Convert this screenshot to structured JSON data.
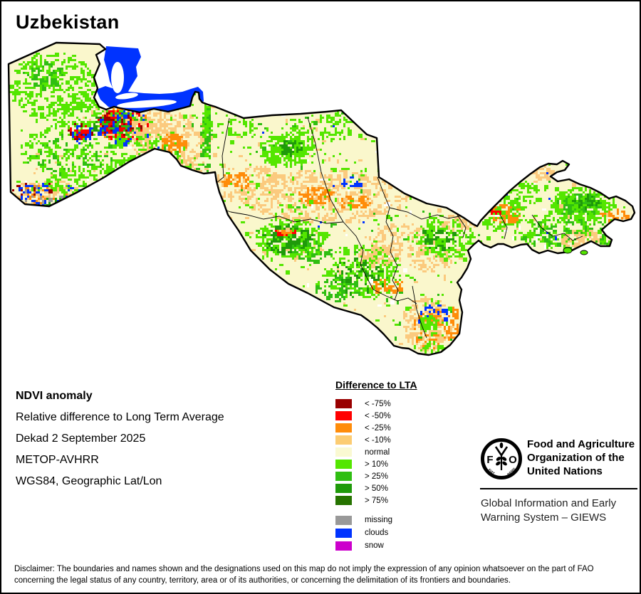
{
  "title": "Uzbekistan",
  "info": {
    "heading": "NDVI anomaly",
    "lines": [
      "Relative difference to Long Term Average",
      "Dekad 2 September 2025",
      "METOP-AVHRR",
      "WGS84, Geographic Lat/Lon"
    ]
  },
  "legend": {
    "title": "Difference to LTA",
    "classes": [
      {
        "label": "< -75%",
        "color": "#990000"
      },
      {
        "label": "< -50%",
        "color": "#FF0000"
      },
      {
        "label": "< -25%",
        "color": "#FF8C0A"
      },
      {
        "label": "< -10%",
        "color": "#FCCC72"
      },
      {
        "label": "normal",
        "color": "#FAF9D2"
      },
      {
        "label": "> 10%",
        "color": "#54E600"
      },
      {
        "label": "> 25%",
        "color": "#2FBE12"
      },
      {
        "label": "> 50%",
        "color": "#1F9A0A"
      },
      {
        "label": "> 75%",
        "color": "#267300"
      }
    ],
    "extra": [
      {
        "label": "missing",
        "color": "#999999"
      },
      {
        "label": "clouds",
        "color": "#0033FF"
      },
      {
        "label": "snow",
        "color": "#CC00CC"
      }
    ]
  },
  "org": {
    "logo_letters": [
      "F",
      "A",
      "O"
    ],
    "logo_motto": [
      "FIAT",
      "PANIS"
    ],
    "name_lines": [
      "Food and Agriculture",
      "Organization of the",
      "United Nations"
    ],
    "division_lines": [
      "Global Information and Early",
      "Warning System – GIEWS"
    ]
  },
  "disclaimer_lines": [
    "Disclaimer: The boundaries and names shown and the designations used on this map do not imply the expression of any opinion whatsoever on the part of FAO",
    "concerning the legal status of any country, territory, area or of its authorities, or concerning the delimitation of its frontiers and boundaries."
  ],
  "map": {
    "country": "Uzbekistan",
    "palette": {
      "normal": "#FAF7CC",
      "dec75": "#990000",
      "dec50": "#FF0000",
      "dec25": "#FF8C0A",
      "dec10": "#FBCA7E",
      "inc10": "#54E600",
      "inc25": "#2FBE12",
      "inc50": "#1F9A0A",
      "inc75": "#267300",
      "missing": "#999999",
      "clouds": "#0033FF",
      "snow": "#CC00CC",
      "nodata": "#FFFFFF",
      "border": "#000000"
    }
  }
}
